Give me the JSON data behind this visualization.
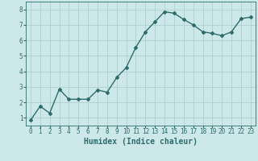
{
  "x": [
    0,
    1,
    2,
    3,
    4,
    5,
    6,
    7,
    8,
    9,
    10,
    11,
    12,
    13,
    14,
    15,
    16,
    17,
    18,
    19,
    20,
    21,
    22,
    23
  ],
  "y": [
    0.85,
    1.75,
    1.3,
    2.85,
    2.2,
    2.2,
    2.2,
    2.8,
    2.65,
    3.6,
    4.25,
    5.55,
    6.55,
    7.2,
    7.85,
    7.75,
    7.35,
    7.0,
    6.55,
    6.45,
    6.3,
    6.55,
    7.4,
    7.5
  ],
  "line_color": "#2e6b6b",
  "marker": "D",
  "marker_size": 2.0,
  "linewidth": 1.0,
  "bg_color": "#cde8e8",
  "grid_color": "#afd0d0",
  "tick_color": "#2e6b6b",
  "label_color": "#2e6b6b",
  "xlabel": "Humidex (Indice chaleur)",
  "xlabel_fontsize": 7,
  "xlabel_fontweight": "bold",
  "ylim": [
    0.5,
    8.5
  ],
  "xlim": [
    -0.5,
    23.5
  ],
  "yticks": [
    1,
    2,
    3,
    4,
    5,
    6,
    7,
    8
  ],
  "xticks": [
    0,
    1,
    2,
    3,
    4,
    5,
    6,
    7,
    8,
    9,
    10,
    11,
    12,
    13,
    14,
    15,
    16,
    17,
    18,
    19,
    20,
    21,
    22,
    23
  ],
  "xtick_labels": [
    "0",
    "1",
    "2",
    "3",
    "4",
    "5",
    "6",
    "7",
    "8",
    "9",
    "10",
    "11",
    "12",
    "13",
    "14",
    "15",
    "16",
    "17",
    "18",
    "19",
    "20",
    "21",
    "22",
    "23"
  ],
  "tick_fontsize": 5.5
}
